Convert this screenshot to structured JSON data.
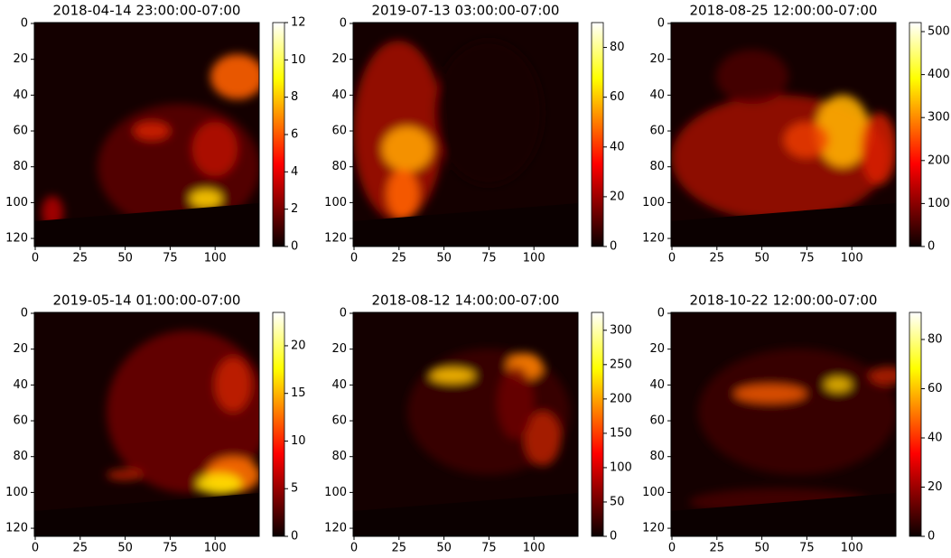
{
  "chart_data": [
    {
      "type": "heatmap",
      "title": "2018-04-14 23:00:00-07:00",
      "colormap": "hot",
      "xlim": [
        -0.5,
        124.5
      ],
      "ylim": [
        124.5,
        -0.5
      ],
      "xticks": [
        0,
        25,
        50,
        75,
        100
      ],
      "yticks": [
        0,
        20,
        40,
        60,
        80,
        100,
        120
      ],
      "clim": [
        0,
        12
      ],
      "cticks": [
        0,
        2,
        4,
        6,
        8,
        10,
        12
      ]
    },
    {
      "type": "heatmap",
      "title": "2019-07-13 03:00:00-07:00",
      "colormap": "hot",
      "xlim": [
        -0.5,
        124.5
      ],
      "ylim": [
        124.5,
        -0.5
      ],
      "xticks": [
        0,
        25,
        50,
        75,
        100
      ],
      "yticks": [
        0,
        20,
        40,
        60,
        80,
        100,
        120
      ],
      "clim": [
        0,
        90
      ],
      "cticks": [
        0,
        20,
        40,
        60,
        80
      ]
    },
    {
      "type": "heatmap",
      "title": "2018-08-25 12:00:00-07:00",
      "colormap": "hot",
      "xlim": [
        -0.5,
        124.5
      ],
      "ylim": [
        124.5,
        -0.5
      ],
      "xticks": [
        0,
        25,
        50,
        75,
        100
      ],
      "yticks": [
        0,
        20,
        40,
        60,
        80,
        100,
        120
      ],
      "clim": [
        0,
        521
      ],
      "cticks": [
        0,
        100,
        200,
        300,
        400,
        500
      ]
    },
    {
      "type": "heatmap",
      "title": "2019-05-14 01:00:00-07:00",
      "colormap": "hot",
      "xlim": [
        -0.5,
        124.5
      ],
      "ylim": [
        124.5,
        -0.5
      ],
      "xticks": [
        0,
        25,
        50,
        75,
        100
      ],
      "yticks": [
        0,
        20,
        40,
        60,
        80,
        100,
        120
      ],
      "clim": [
        0,
        23.5
      ],
      "cticks": [
        0,
        5,
        10,
        15,
        20
      ]
    },
    {
      "type": "heatmap",
      "title": "2018-08-12 14:00:00-07:00",
      "colormap": "hot",
      "xlim": [
        -0.5,
        124.5
      ],
      "ylim": [
        124.5,
        -0.5
      ],
      "xticks": [
        0,
        25,
        50,
        75,
        100
      ],
      "yticks": [
        0,
        20,
        40,
        60,
        80,
        100,
        120
      ],
      "clim": [
        0,
        326
      ],
      "cticks": [
        0,
        50,
        100,
        150,
        200,
        250,
        300
      ]
    },
    {
      "type": "heatmap",
      "title": "2018-10-22 12:00:00-07:00",
      "colormap": "hot",
      "xlim": [
        -0.5,
        124.5
      ],
      "ylim": [
        124.5,
        -0.5
      ],
      "xticks": [
        0,
        25,
        50,
        75,
        100
      ],
      "yticks": [
        0,
        20,
        40,
        60,
        80,
        100,
        120
      ],
      "clim": [
        0,
        91
      ],
      "cticks": [
        0,
        20,
        40,
        60,
        80
      ]
    }
  ]
}
